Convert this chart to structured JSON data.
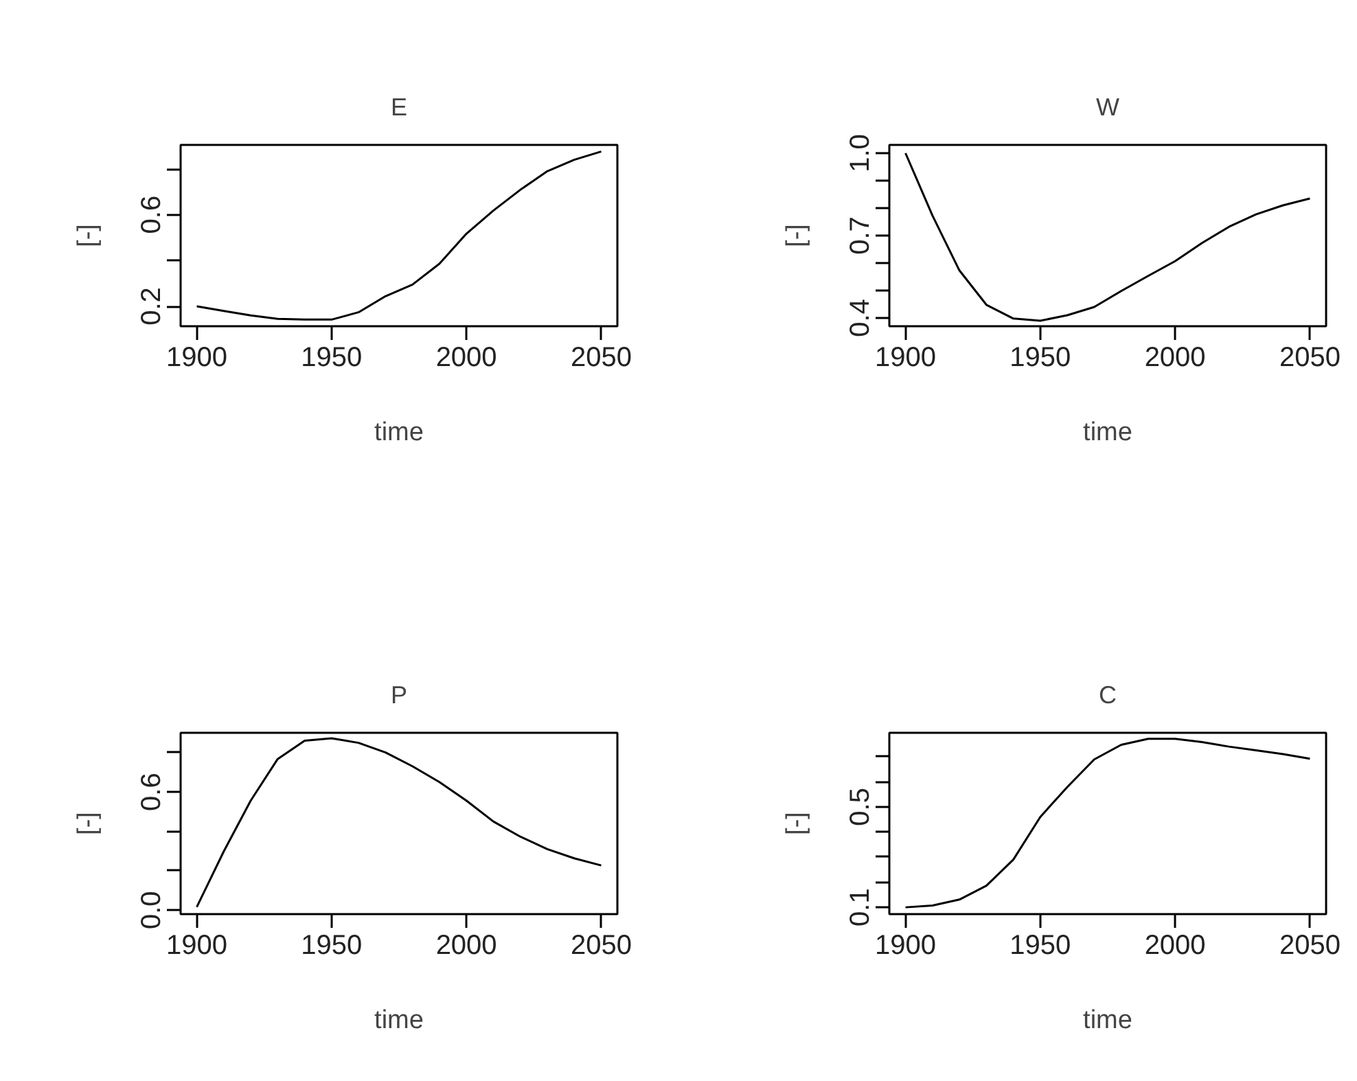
{
  "chart_data": [
    {
      "type": "line",
      "title": "E",
      "xlabel": "time",
      "ylabel": "[-]",
      "grid": false,
      "x": [
        1900,
        1910,
        1920,
        1930,
        1940,
        1950,
        1960,
        1970,
        1980,
        1990,
        2000,
        2010,
        2020,
        2030,
        2040,
        2050
      ],
      "series": [
        {
          "color": "#000000",
          "values": [
            0.2,
            0.18,
            0.16,
            0.145,
            0.142,
            0.142,
            0.174,
            0.244,
            0.295,
            0.386,
            0.517,
            0.618,
            0.709,
            0.79,
            0.84,
            0.876
          ]
        }
      ],
      "xlim": [
        1894,
        2056
      ],
      "ylim": [
        0.113,
        0.905
      ],
      "xticks": [
        1900,
        1950,
        2000,
        2050
      ],
      "yticks": [
        0.2,
        {
          "value": 0.4,
          "label": null
        },
        0.6,
        {
          "value": 0.8,
          "label": null
        }
      ]
    },
    {
      "type": "line",
      "title": "W",
      "xlabel": "time",
      "ylabel": "[-]",
      "grid": false,
      "x": [
        1900,
        1910,
        1920,
        1930,
        1940,
        1950,
        1960,
        1970,
        1980,
        1990,
        2000,
        2010,
        2020,
        2030,
        2040,
        2050
      ],
      "series": [
        {
          "color": "#000000",
          "values": [
            1.0,
            0.773,
            0.573,
            0.448,
            0.398,
            0.39,
            0.41,
            0.44,
            0.498,
            0.553,
            0.607,
            0.673,
            0.732,
            0.777,
            0.81,
            0.835
          ]
        }
      ],
      "xlim": [
        1894,
        2056
      ],
      "ylim": [
        0.37,
        1.03
      ],
      "xticks": [
        1900,
        1950,
        2000,
        2050
      ],
      "yticks": [
        0.4,
        {
          "value": 0.5,
          "label": null
        },
        {
          "value": 0.6,
          "label": null
        },
        0.7,
        {
          "value": 0.8,
          "label": null
        },
        {
          "value": 0.9,
          "label": null
        },
        {
          "value": 1.0,
          "label": "1.0"
        }
      ]
    },
    {
      "type": "line",
      "title": "P",
      "xlabel": "time",
      "ylabel": "[-]",
      "grid": false,
      "x": [
        1900,
        1910,
        1920,
        1930,
        1940,
        1950,
        1960,
        1970,
        1980,
        1990,
        2000,
        2010,
        2020,
        2030,
        2040,
        2050
      ],
      "series": [
        {
          "color": "#000000",
          "values": [
            0.016,
            0.298,
            0.556,
            0.767,
            0.86,
            0.872,
            0.849,
            0.8,
            0.73,
            0.65,
            0.556,
            0.45,
            0.373,
            0.31,
            0.263,
            0.227
          ]
        }
      ],
      "xlim": [
        1894,
        2056
      ],
      "ylim": [
        -0.02,
        0.9
      ],
      "xticks": [
        1900,
        1950,
        2000,
        2050
      ],
      "yticks": [
        {
          "value": 0.0,
          "label": "0.0"
        },
        {
          "value": 0.2,
          "label": null
        },
        {
          "value": 0.4,
          "label": null
        },
        0.6,
        {
          "value": 0.8,
          "label": null
        }
      ]
    },
    {
      "type": "line",
      "title": "C",
      "xlabel": "time",
      "ylabel": "[-]",
      "grid": false,
      "x": [
        1900,
        1910,
        1920,
        1930,
        1940,
        1950,
        1960,
        1970,
        1980,
        1990,
        2000,
        2010,
        2020,
        2030,
        2040,
        2050
      ],
      "series": [
        {
          "color": "#000000",
          "values": [
            0.1,
            0.107,
            0.131,
            0.186,
            0.29,
            0.46,
            0.579,
            0.689,
            0.747,
            0.771,
            0.771,
            0.758,
            0.74,
            0.725,
            0.71,
            0.692
          ]
        }
      ],
      "xlim": [
        1894,
        2056
      ],
      "ylim": [
        0.073,
        0.795
      ],
      "xticks": [
        1900,
        1950,
        2000,
        2050
      ],
      "yticks": [
        0.1,
        {
          "value": 0.2,
          "label": null
        },
        {
          "value": 0.3,
          "label": null
        },
        {
          "value": 0.4,
          "label": null
        },
        0.5,
        {
          "value": 0.6,
          "label": null
        },
        {
          "value": 0.7,
          "label": null
        }
      ]
    }
  ]
}
